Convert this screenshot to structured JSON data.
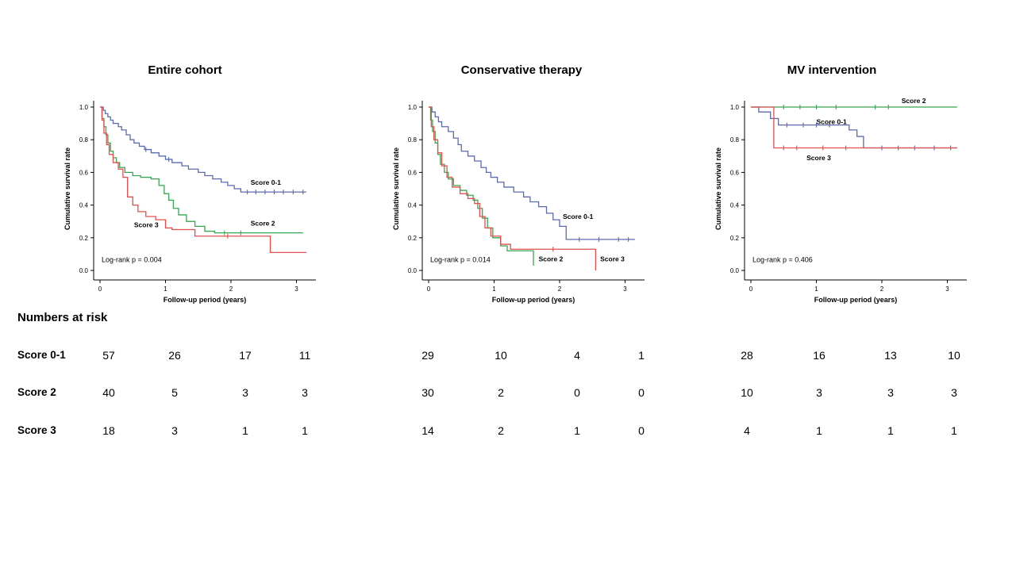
{
  "risk_table": {
    "title": "Numbers at risk",
    "rows": [
      {
        "label": "Score 0-1",
        "entire": [
          57,
          26,
          17,
          11
        ],
        "conservative": [
          29,
          10,
          4,
          1
        ],
        "mv": [
          28,
          16,
          13,
          10
        ]
      },
      {
        "label": "Score 2",
        "entire": [
          40,
          5,
          3,
          3
        ],
        "conservative": [
          30,
          2,
          0,
          0
        ],
        "mv": [
          10,
          3,
          3,
          3
        ]
      },
      {
        "label": "Score 3",
        "entire": [
          18,
          3,
          1,
          1
        ],
        "conservative": [
          14,
          2,
          1,
          0
        ],
        "mv": [
          4,
          1,
          1,
          1
        ]
      }
    ]
  },
  "chart_data": [
    {
      "type": "line",
      "subtype": "kaplan-meier-step",
      "title": "Entire cohort",
      "xlabel": "Follow-up period (years)",
      "ylabel": "Cumulative survival rate",
      "annotation": "Log-rank p = 0.004",
      "xlim": [
        0,
        3.2
      ],
      "ylim": [
        0,
        1.0
      ],
      "xticks": [
        0,
        1,
        2,
        3
      ],
      "yticks": [
        0,
        0.2,
        0.4,
        0.6,
        0.8,
        1.0
      ],
      "series": [
        {
          "name": "Score 0-1",
          "color": "#5b6bae",
          "label_xy": [
            2.3,
            0.54
          ],
          "points": [
            [
              0,
              1.0
            ],
            [
              0.05,
              0.98
            ],
            [
              0.08,
              0.96
            ],
            [
              0.12,
              0.94
            ],
            [
              0.16,
              0.92
            ],
            [
              0.2,
              0.9
            ],
            [
              0.28,
              0.88
            ],
            [
              0.33,
              0.86
            ],
            [
              0.4,
              0.83
            ],
            [
              0.46,
              0.8
            ],
            [
              0.52,
              0.78
            ],
            [
              0.6,
              0.76
            ],
            [
              0.68,
              0.74
            ],
            [
              0.78,
              0.72
            ],
            [
              0.9,
              0.7
            ],
            [
              1.0,
              0.68
            ],
            [
              1.1,
              0.66
            ],
            [
              1.25,
              0.64
            ],
            [
              1.35,
              0.62
            ],
            [
              1.5,
              0.6
            ],
            [
              1.6,
              0.58
            ],
            [
              1.72,
              0.56
            ],
            [
              1.85,
              0.54
            ],
            [
              1.95,
              0.52
            ],
            [
              2.05,
              0.5
            ],
            [
              2.15,
              0.48
            ],
            [
              3.15,
              0.48
            ]
          ],
          "censors": [
            [
              0.7,
              0.74
            ],
            [
              1.05,
              0.68
            ],
            [
              2.25,
              0.48
            ],
            [
              2.38,
              0.48
            ],
            [
              2.52,
              0.48
            ],
            [
              2.66,
              0.48
            ],
            [
              2.8,
              0.48
            ],
            [
              2.95,
              0.48
            ],
            [
              3.1,
              0.48
            ]
          ]
        },
        {
          "name": "Score 2",
          "color": "#3aa552",
          "label_xy": [
            2.3,
            0.29
          ],
          "points": [
            [
              0,
              1.0
            ],
            [
              0.03,
              0.93
            ],
            [
              0.06,
              0.88
            ],
            [
              0.09,
              0.83
            ],
            [
              0.12,
              0.78
            ],
            [
              0.16,
              0.73
            ],
            [
              0.2,
              0.69
            ],
            [
              0.25,
              0.66
            ],
            [
              0.3,
              0.63
            ],
            [
              0.38,
              0.6
            ],
            [
              0.5,
              0.58
            ],
            [
              0.62,
              0.57
            ],
            [
              0.78,
              0.56
            ],
            [
              0.9,
              0.52
            ],
            [
              0.98,
              0.47
            ],
            [
              1.05,
              0.43
            ],
            [
              1.12,
              0.38
            ],
            [
              1.2,
              0.34
            ],
            [
              1.32,
              0.3
            ],
            [
              1.45,
              0.27
            ],
            [
              1.6,
              0.24
            ],
            [
              1.75,
              0.23
            ],
            [
              3.1,
              0.23
            ]
          ],
          "censors": [
            [
              1.9,
              0.23
            ],
            [
              2.15,
              0.23
            ]
          ]
        },
        {
          "name": "Score 3",
          "color": "#e0504e",
          "label_xy": [
            0.52,
            0.28
          ],
          "points": [
            [
              0,
              1.0
            ],
            [
              0.03,
              0.92
            ],
            [
              0.06,
              0.84
            ],
            [
              0.1,
              0.77
            ],
            [
              0.14,
              0.71
            ],
            [
              0.2,
              0.66
            ],
            [
              0.28,
              0.62
            ],
            [
              0.35,
              0.57
            ],
            [
              0.42,
              0.45
            ],
            [
              0.5,
              0.4
            ],
            [
              0.58,
              0.36
            ],
            [
              0.7,
              0.33
            ],
            [
              0.85,
              0.31
            ],
            [
              1.0,
              0.26
            ],
            [
              1.1,
              0.25
            ],
            [
              1.45,
              0.21
            ],
            [
              2.6,
              0.11
            ],
            [
              3.15,
              0.11
            ]
          ],
          "censors": [
            [
              1.95,
              0.21
            ]
          ]
        }
      ]
    },
    {
      "type": "line",
      "subtype": "kaplan-meier-step",
      "title": "Conservative therapy",
      "xlabel": "Follow-up period (years)",
      "ylabel": "Cumulative survival rate",
      "annotation": "Log-rank p = 0.014",
      "xlim": [
        0,
        3.2
      ],
      "ylim": [
        0,
        1.0
      ],
      "xticks": [
        0,
        1,
        2,
        3
      ],
      "yticks": [
        0,
        0.2,
        0.4,
        0.6,
        0.8,
        1.0
      ],
      "series": [
        {
          "name": "Score 0-1",
          "color": "#5b6bae",
          "label_xy": [
            2.05,
            0.33
          ],
          "points": [
            [
              0,
              1.0
            ],
            [
              0.05,
              0.97
            ],
            [
              0.1,
              0.94
            ],
            [
              0.15,
              0.91
            ],
            [
              0.2,
              0.88
            ],
            [
              0.3,
              0.85
            ],
            [
              0.38,
              0.81
            ],
            [
              0.45,
              0.77
            ],
            [
              0.5,
              0.73
            ],
            [
              0.6,
              0.7
            ],
            [
              0.7,
              0.67
            ],
            [
              0.8,
              0.63
            ],
            [
              0.88,
              0.6
            ],
            [
              0.95,
              0.57
            ],
            [
              1.05,
              0.54
            ],
            [
              1.15,
              0.51
            ],
            [
              1.3,
              0.48
            ],
            [
              1.45,
              0.45
            ],
            [
              1.55,
              0.42
            ],
            [
              1.68,
              0.39
            ],
            [
              1.8,
              0.35
            ],
            [
              1.9,
              0.31
            ],
            [
              2.0,
              0.27
            ],
            [
              2.1,
              0.19
            ],
            [
              3.15,
              0.19
            ]
          ],
          "censors": [
            [
              2.3,
              0.19
            ],
            [
              2.6,
              0.19
            ],
            [
              2.9,
              0.19
            ],
            [
              3.05,
              0.19
            ]
          ]
        },
        {
          "name": "Score 2",
          "color": "#3aa552",
          "label_xy": [
            1.68,
            0.07
          ],
          "points": [
            [
              0,
              1.0
            ],
            [
              0.03,
              0.92
            ],
            [
              0.06,
              0.85
            ],
            [
              0.1,
              0.78
            ],
            [
              0.14,
              0.71
            ],
            [
              0.18,
              0.65
            ],
            [
              0.24,
              0.6
            ],
            [
              0.3,
              0.56
            ],
            [
              0.38,
              0.52
            ],
            [
              0.48,
              0.49
            ],
            [
              0.58,
              0.46
            ],
            [
              0.68,
              0.43
            ],
            [
              0.75,
              0.38
            ],
            [
              0.82,
              0.32
            ],
            [
              0.9,
              0.26
            ],
            [
              0.98,
              0.2
            ],
            [
              1.1,
              0.15
            ],
            [
              1.2,
              0.12
            ],
            [
              1.55,
              0.12
            ],
            [
              1.6,
              0.03
            ]
          ],
          "censors": []
        },
        {
          "name": "Score 3",
          "color": "#e0504e",
          "label_xy": [
            2.62,
            0.07
          ],
          "points": [
            [
              0,
              1.0
            ],
            [
              0.04,
              0.88
            ],
            [
              0.08,
              0.8
            ],
            [
              0.14,
              0.72
            ],
            [
              0.2,
              0.64
            ],
            [
              0.28,
              0.57
            ],
            [
              0.36,
              0.51
            ],
            [
              0.48,
              0.47
            ],
            [
              0.6,
              0.44
            ],
            [
              0.7,
              0.41
            ],
            [
              0.78,
              0.33
            ],
            [
              0.86,
              0.26
            ],
            [
              0.95,
              0.21
            ],
            [
              1.1,
              0.16
            ],
            [
              1.25,
              0.13
            ],
            [
              2.5,
              0.13
            ],
            [
              2.55,
              0.0
            ]
          ],
          "censors": [
            [
              1.9,
              0.13
            ]
          ]
        }
      ]
    },
    {
      "type": "line",
      "subtype": "kaplan-meier-step",
      "title": "MV intervention",
      "xlabel": "Follow-up period (years)",
      "ylabel": "Cumulative survival rate",
      "annotation": "Log-rank p = 0.406",
      "xlim": [
        0,
        3.2
      ],
      "ylim": [
        0,
        1.0
      ],
      "xticks": [
        0,
        1,
        2,
        3
      ],
      "yticks": [
        0,
        0.2,
        0.4,
        0.6,
        0.8,
        1.0
      ],
      "series": [
        {
          "name": "Score 2",
          "color": "#3aa552",
          "label_xy": [
            2.3,
            1.04
          ],
          "points": [
            [
              0,
              1.0
            ],
            [
              3.15,
              1.0
            ]
          ],
          "censors": [
            [
              0.5,
              1.0
            ],
            [
              0.75,
              1.0
            ],
            [
              1.0,
              1.0
            ],
            [
              1.3,
              1.0
            ],
            [
              1.9,
              1.0
            ],
            [
              2.1,
              1.0
            ]
          ]
        },
        {
          "name": "Score 0-1",
          "color": "#5b6bae",
          "label_xy": [
            1.0,
            0.91
          ],
          "points": [
            [
              0,
              1.0
            ],
            [
              0.12,
              0.97
            ],
            [
              0.3,
              0.93
            ],
            [
              0.42,
              0.89
            ],
            [
              1.5,
              0.86
            ],
            [
              1.62,
              0.82
            ],
            [
              1.72,
              0.75
            ],
            [
              3.15,
              0.75
            ]
          ],
          "censors": [
            [
              0.55,
              0.89
            ],
            [
              0.8,
              0.89
            ],
            [
              1.0,
              0.89
            ],
            [
              1.2,
              0.89
            ],
            [
              2.0,
              0.75
            ],
            [
              2.25,
              0.75
            ],
            [
              2.5,
              0.75
            ],
            [
              2.8,
              0.75
            ],
            [
              3.05,
              0.75
            ]
          ]
        },
        {
          "name": "Score 3",
          "color": "#e0504e",
          "label_xy": [
            0.85,
            0.69
          ],
          "points": [
            [
              0,
              1.0
            ],
            [
              0.35,
              0.75
            ],
            [
              3.15,
              0.75
            ]
          ],
          "censors": [
            [
              0.5,
              0.75
            ],
            [
              0.7,
              0.75
            ],
            [
              1.1,
              0.75
            ],
            [
              1.45,
              0.75
            ]
          ]
        }
      ]
    }
  ]
}
